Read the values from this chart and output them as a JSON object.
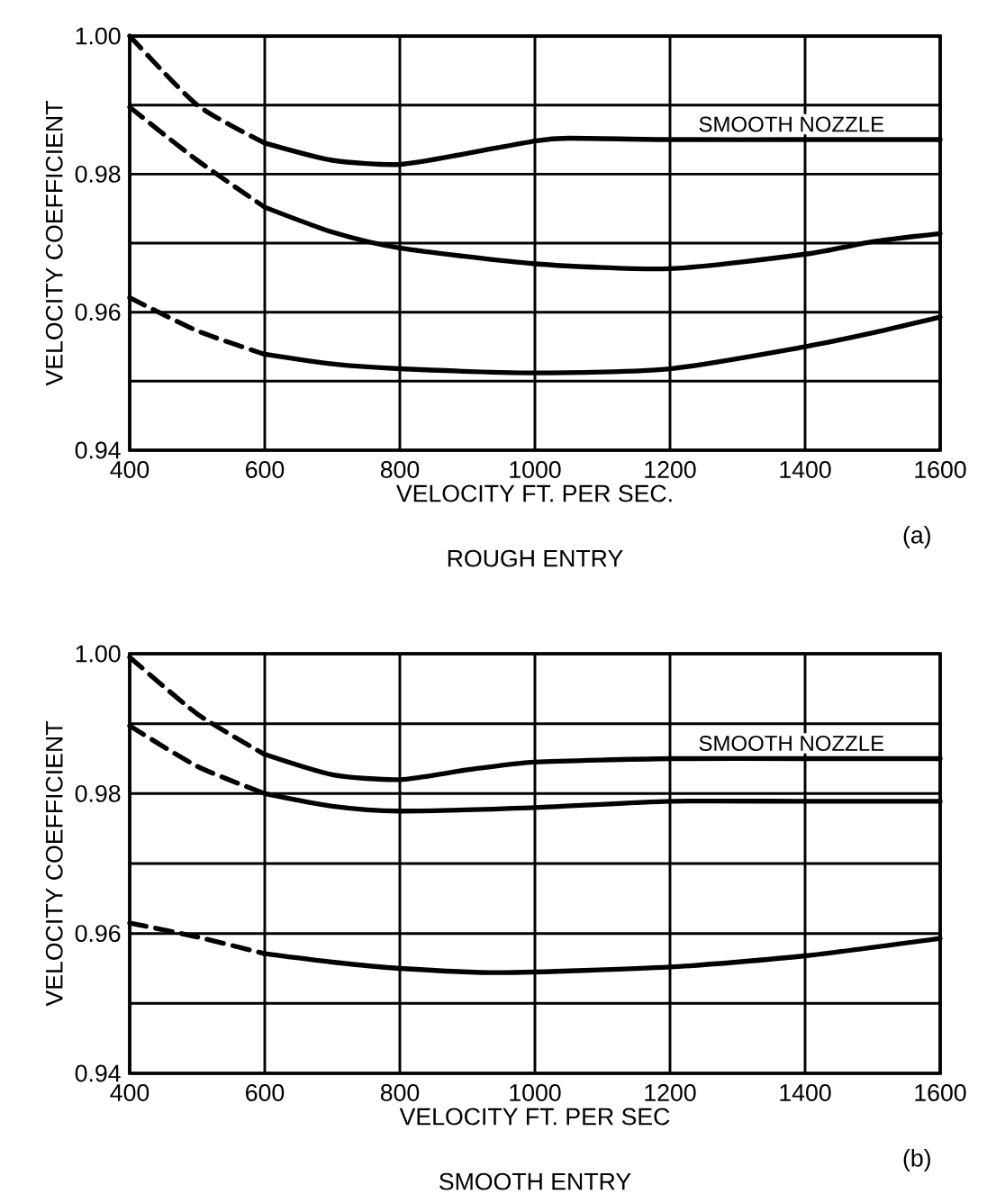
{
  "chart_data": [
    {
      "type": "line",
      "xlabel": "VELOCITY FT. PER SEC.",
      "ylabel": "VELOCITY COEFFICIENT",
      "annotations": [
        "ROUGH ENTRY",
        "(a)"
      ],
      "xlim": [
        400,
        1600
      ],
      "xticks": [
        400,
        600,
        800,
        1000,
        1200,
        1400,
        1600
      ],
      "ylim": [
        0.94,
        1.0
      ],
      "yticks": [
        0.94,
        {
          "value": 0.95,
          "label": null
        },
        0.96,
        {
          "value": 0.97,
          "label": null
        },
        0.98,
        {
          "value": 0.99,
          "label": null
        },
        {
          "value": 1.0,
          "label": "1.00"
        }
      ],
      "grid": true,
      "series": [
        {
          "color": "#000000",
          "line_style": "dashed",
          "x": [
            400,
            500,
            600
          ],
          "values": [
            1.0,
            0.99,
            0.9845
          ]
        },
        {
          "name": "SMOOTH NOZZLE",
          "color": "#000000",
          "line_style": "solid",
          "x": [
            600,
            700,
            800,
            900,
            1000,
            1050,
            1200,
            1400,
            1600
          ],
          "values": [
            0.9845,
            0.982,
            0.9814,
            0.983,
            0.9848,
            0.9852,
            0.985,
            0.985,
            0.985
          ]
        },
        {
          "color": "#000000",
          "line_style": "dashed",
          "x": [
            400,
            500,
            600
          ],
          "values": [
            0.9897,
            0.982,
            0.9752
          ]
        },
        {
          "color": "#000000",
          "line_style": "solid",
          "x": [
            600,
            700,
            800,
            1000,
            1200,
            1400,
            1500,
            1600
          ],
          "values": [
            0.9752,
            0.9716,
            0.9693,
            0.967,
            0.9663,
            0.9684,
            0.9702,
            0.9714
          ]
        },
        {
          "color": "#000000",
          "line_style": "dashed",
          "x": [
            400,
            500,
            600
          ],
          "values": [
            0.9621,
            0.9573,
            0.9539
          ]
        },
        {
          "color": "#000000",
          "line_style": "solid",
          "x": [
            600,
            700,
            800,
            1000,
            1200,
            1400,
            1500,
            1600
          ],
          "values": [
            0.9539,
            0.9525,
            0.9518,
            0.9512,
            0.9518,
            0.955,
            0.957,
            0.9593
          ]
        }
      ]
    },
    {
      "type": "line",
      "xlabel": "VELOCITY FT. PER SEC",
      "ylabel": "VELOCITY COEFFICIENT",
      "annotations": [
        "SMOOTH ENTRY",
        "(b)"
      ],
      "xlim": [
        400,
        1600
      ],
      "xticks": [
        400,
        600,
        800,
        1000,
        1200,
        1400,
        1600
      ],
      "ylim": [
        0.94,
        1.0
      ],
      "yticks": [
        0.94,
        {
          "value": 0.95,
          "label": null
        },
        0.96,
        {
          "value": 0.97,
          "label": null
        },
        0.98,
        {
          "value": 0.99,
          "label": null
        },
        {
          "value": 1.0,
          "label": "1.00"
        }
      ],
      "grid": true,
      "series": [
        {
          "color": "#000000",
          "line_style": "dashed",
          "x": [
            400,
            500,
            600
          ],
          "values": [
            0.9995,
            0.9914,
            0.9856
          ]
        },
        {
          "name": "SMOOTH NOZZLE",
          "color": "#000000",
          "line_style": "solid",
          "x": [
            600,
            700,
            800,
            900,
            1000,
            1200,
            1400,
            1600
          ],
          "values": [
            0.9856,
            0.9827,
            0.982,
            0.9834,
            0.9845,
            0.985,
            0.985,
            0.985
          ]
        },
        {
          "color": "#000000",
          "line_style": "dashed",
          "x": [
            400,
            500,
            600
          ],
          "values": [
            0.9897,
            0.9839,
            0.98
          ]
        },
        {
          "color": "#000000",
          "line_style": "solid",
          "x": [
            600,
            700,
            800,
            1000,
            1200,
            1400,
            1600
          ],
          "values": [
            0.98,
            0.9782,
            0.9775,
            0.978,
            0.9789,
            0.9789,
            0.9789
          ]
        },
        {
          "color": "#000000",
          "line_style": "dashed",
          "x": [
            400,
            500,
            600
          ],
          "values": [
            0.9615,
            0.9595,
            0.9571
          ]
        },
        {
          "color": "#000000",
          "line_style": "solid",
          "x": [
            600,
            700,
            800,
            950,
            1200,
            1400,
            1600
          ],
          "values": [
            0.9571,
            0.9559,
            0.955,
            0.9544,
            0.9552,
            0.9568,
            0.9593
          ]
        }
      ]
    }
  ]
}
